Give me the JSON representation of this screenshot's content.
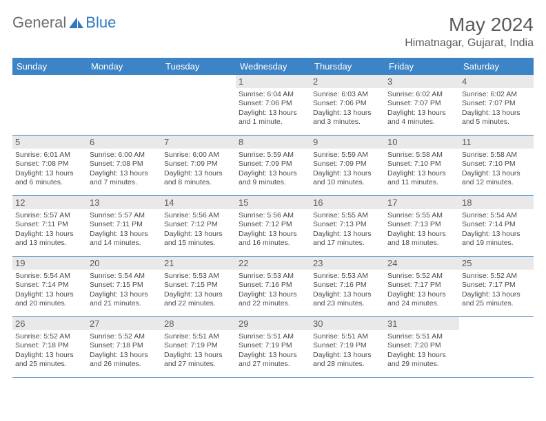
{
  "logo": {
    "left": "General",
    "right": "Blue"
  },
  "title": "May 2024",
  "location": "Himatnagar, Gujarat, India",
  "colors": {
    "header_bg": "#3d84c6",
    "header_text": "#ffffff",
    "daynum_bg": "#e9e9e9",
    "text_gray": "#5a5a5a",
    "border": "#3d84c6",
    "logo_blue": "#2f78c2"
  },
  "weekdays": [
    "Sunday",
    "Monday",
    "Tuesday",
    "Wednesday",
    "Thursday",
    "Friday",
    "Saturday"
  ],
  "weeks": [
    [
      null,
      null,
      null,
      {
        "n": "1",
        "sr": "6:04 AM",
        "ss": "7:06 PM",
        "dl": "13 hours and 1 minute."
      },
      {
        "n": "2",
        "sr": "6:03 AM",
        "ss": "7:06 PM",
        "dl": "13 hours and 3 minutes."
      },
      {
        "n": "3",
        "sr": "6:02 AM",
        "ss": "7:07 PM",
        "dl": "13 hours and 4 minutes."
      },
      {
        "n": "4",
        "sr": "6:02 AM",
        "ss": "7:07 PM",
        "dl": "13 hours and 5 minutes."
      }
    ],
    [
      {
        "n": "5",
        "sr": "6:01 AM",
        "ss": "7:08 PM",
        "dl": "13 hours and 6 minutes."
      },
      {
        "n": "6",
        "sr": "6:00 AM",
        "ss": "7:08 PM",
        "dl": "13 hours and 7 minutes."
      },
      {
        "n": "7",
        "sr": "6:00 AM",
        "ss": "7:09 PM",
        "dl": "13 hours and 8 minutes."
      },
      {
        "n": "8",
        "sr": "5:59 AM",
        "ss": "7:09 PM",
        "dl": "13 hours and 9 minutes."
      },
      {
        "n": "9",
        "sr": "5:59 AM",
        "ss": "7:09 PM",
        "dl": "13 hours and 10 minutes."
      },
      {
        "n": "10",
        "sr": "5:58 AM",
        "ss": "7:10 PM",
        "dl": "13 hours and 11 minutes."
      },
      {
        "n": "11",
        "sr": "5:58 AM",
        "ss": "7:10 PM",
        "dl": "13 hours and 12 minutes."
      }
    ],
    [
      {
        "n": "12",
        "sr": "5:57 AM",
        "ss": "7:11 PM",
        "dl": "13 hours and 13 minutes."
      },
      {
        "n": "13",
        "sr": "5:57 AM",
        "ss": "7:11 PM",
        "dl": "13 hours and 14 minutes."
      },
      {
        "n": "14",
        "sr": "5:56 AM",
        "ss": "7:12 PM",
        "dl": "13 hours and 15 minutes."
      },
      {
        "n": "15",
        "sr": "5:56 AM",
        "ss": "7:12 PM",
        "dl": "13 hours and 16 minutes."
      },
      {
        "n": "16",
        "sr": "5:55 AM",
        "ss": "7:13 PM",
        "dl": "13 hours and 17 minutes."
      },
      {
        "n": "17",
        "sr": "5:55 AM",
        "ss": "7:13 PM",
        "dl": "13 hours and 18 minutes."
      },
      {
        "n": "18",
        "sr": "5:54 AM",
        "ss": "7:14 PM",
        "dl": "13 hours and 19 minutes."
      }
    ],
    [
      {
        "n": "19",
        "sr": "5:54 AM",
        "ss": "7:14 PM",
        "dl": "13 hours and 20 minutes."
      },
      {
        "n": "20",
        "sr": "5:54 AM",
        "ss": "7:15 PM",
        "dl": "13 hours and 21 minutes."
      },
      {
        "n": "21",
        "sr": "5:53 AM",
        "ss": "7:15 PM",
        "dl": "13 hours and 22 minutes."
      },
      {
        "n": "22",
        "sr": "5:53 AM",
        "ss": "7:16 PM",
        "dl": "13 hours and 22 minutes."
      },
      {
        "n": "23",
        "sr": "5:53 AM",
        "ss": "7:16 PM",
        "dl": "13 hours and 23 minutes."
      },
      {
        "n": "24",
        "sr": "5:52 AM",
        "ss": "7:17 PM",
        "dl": "13 hours and 24 minutes."
      },
      {
        "n": "25",
        "sr": "5:52 AM",
        "ss": "7:17 PM",
        "dl": "13 hours and 25 minutes."
      }
    ],
    [
      {
        "n": "26",
        "sr": "5:52 AM",
        "ss": "7:18 PM",
        "dl": "13 hours and 25 minutes."
      },
      {
        "n": "27",
        "sr": "5:52 AM",
        "ss": "7:18 PM",
        "dl": "13 hours and 26 minutes."
      },
      {
        "n": "28",
        "sr": "5:51 AM",
        "ss": "7:19 PM",
        "dl": "13 hours and 27 minutes."
      },
      {
        "n": "29",
        "sr": "5:51 AM",
        "ss": "7:19 PM",
        "dl": "13 hours and 27 minutes."
      },
      {
        "n": "30",
        "sr": "5:51 AM",
        "ss": "7:19 PM",
        "dl": "13 hours and 28 minutes."
      },
      {
        "n": "31",
        "sr": "5:51 AM",
        "ss": "7:20 PM",
        "dl": "13 hours and 29 minutes."
      },
      null
    ]
  ],
  "labels": {
    "sunrise": "Sunrise: ",
    "sunset": "Sunset: ",
    "daylight": "Daylight: "
  }
}
